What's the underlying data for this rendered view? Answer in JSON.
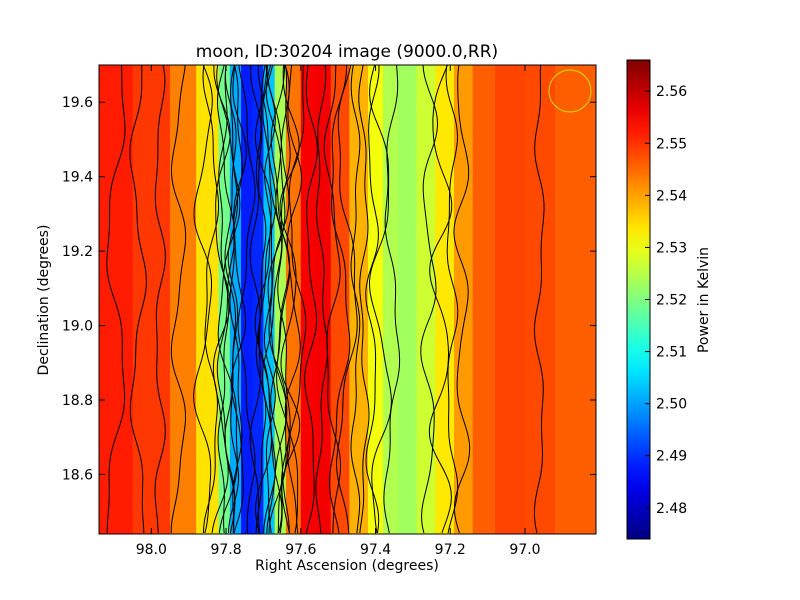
{
  "chart_data": {
    "type": "heatmap",
    "title": "moon, ID:30204 image (9000.0,RR)",
    "xlabel": "Right Ascension (degrees)",
    "ylabel": "Declination (degrees)",
    "colorbar_label": "Power in Kelvin",
    "colormap": "jet",
    "contours": true,
    "xlim": [
      98.14,
      96.81
    ],
    "ylim": [
      18.44,
      19.7
    ],
    "x_ticks": [
      "98.0",
      "97.8",
      "97.6",
      "97.4",
      "97.2",
      "97.0"
    ],
    "x_tick_values": [
      98.0,
      97.8,
      97.6,
      97.4,
      97.2,
      97.0
    ],
    "y_ticks": [
      "18.6",
      "18.8",
      "19.0",
      "19.2",
      "19.4",
      "19.6"
    ],
    "y_tick_values": [
      18.6,
      18.8,
      19.0,
      19.2,
      19.4,
      19.6
    ],
    "colorbar_range": [
      2.474,
      2.566
    ],
    "colorbar_ticks": [
      "2.48",
      "2.49",
      "2.50",
      "2.51",
      "2.52",
      "2.53",
      "2.54",
      "2.55",
      "2.56"
    ],
    "colorbar_tick_values": [
      2.48,
      2.49,
      2.5,
      2.51,
      2.52,
      2.53,
      2.54,
      2.55,
      2.56
    ],
    "profile_ra": [
      98.14,
      98.05,
      97.95,
      97.88,
      97.82,
      97.79,
      97.76,
      97.73,
      97.7,
      97.67,
      97.64,
      97.6,
      97.56,
      97.52,
      97.47,
      97.42,
      97.38,
      97.34,
      97.29,
      97.24,
      97.19,
      97.14,
      97.08,
      97.0,
      96.92,
      96.81
    ],
    "profile_kelvin": [
      2.551,
      2.553,
      2.546,
      2.54,
      2.528,
      2.51,
      2.492,
      2.484,
      2.494,
      2.512,
      2.536,
      2.552,
      2.558,
      2.553,
      2.543,
      2.534,
      2.527,
      2.522,
      2.524,
      2.53,
      2.537,
      2.544,
      2.548,
      2.549,
      2.547,
      2.545
    ],
    "circle_color": "#cccc00"
  }
}
